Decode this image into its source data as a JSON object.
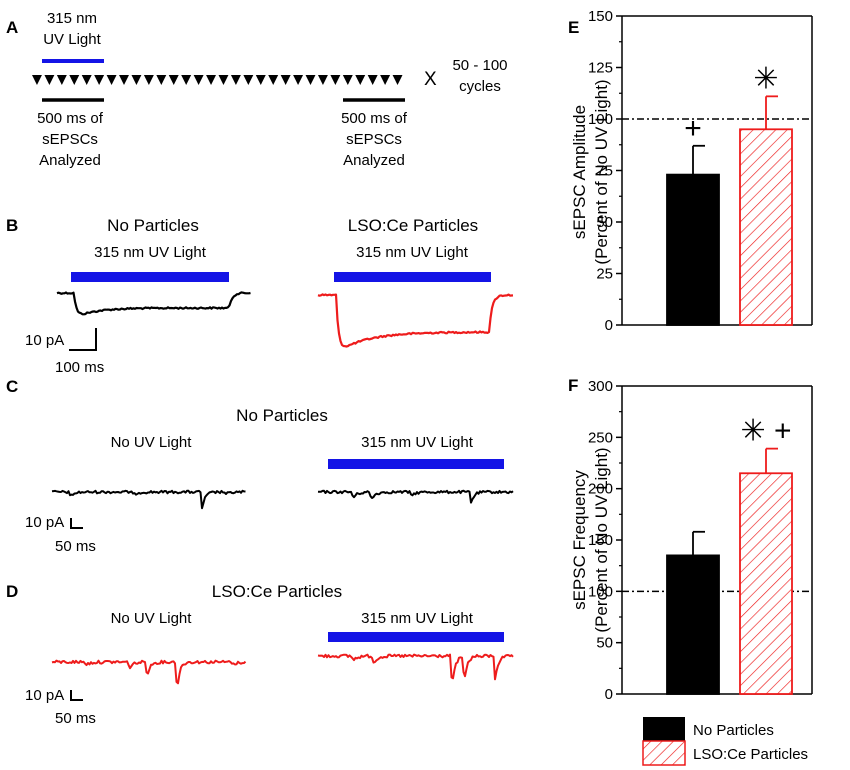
{
  "colors": {
    "black": "#000000",
    "red": "#ee1c1c",
    "blue": "#1414e6",
    "white": "#ffffff"
  },
  "panel_labels": [
    "A",
    "B",
    "C",
    "D",
    "E",
    "F"
  ],
  "panelA": {
    "uv_label_line1": "315 nm",
    "uv_label_line2": "UV Light",
    "cycles_x": "X",
    "cycles_line1": "50 - 100",
    "cycles_line2": "cycles",
    "analyzed_left": [
      "500 ms of",
      "sEPSCs",
      "Analyzed"
    ],
    "analyzed_right": [
      "500 ms of",
      "sEPSCs",
      "Analyzed"
    ],
    "pulse_count": 30
  },
  "panelB": {
    "title_left": "No Particles",
    "title_right": "LSO:Ce Particles",
    "uv_left": "315 nm UV Light",
    "uv_right": "315 nm UV Light",
    "scale_y": "10 pA",
    "scale_x": "100 ms"
  },
  "panelC": {
    "title": "No Particles",
    "left_label": "No UV Light",
    "right_label": "315 nm UV Light",
    "scale_y": "10 pA",
    "scale_x": "50 ms"
  },
  "panelD": {
    "title": "LSO:Ce Particles",
    "left_label": "No UV Light",
    "right_label": "315 nm UV Light",
    "scale_y": "10 pA",
    "scale_x": "50 ms"
  },
  "chart_data": [
    {
      "panel": "E",
      "type": "bar",
      "categories": [
        "No Particles",
        "LSO:Ce Particles"
      ],
      "values": [
        73,
        95
      ],
      "errors": [
        14,
        16
      ],
      "ylabel_line1": "sEPSC Amplitude",
      "ylabel_line2": "(Percent of No UV Light)",
      "ylim": [
        0,
        150
      ],
      "yticks": [
        "0",
        "25",
        "50",
        "75",
        "100",
        "125",
        "150"
      ],
      "reference_line": 100,
      "annotations": [
        "+",
        "✳"
      ]
    },
    {
      "panel": "F",
      "type": "bar",
      "categories": [
        "No Particles",
        "LSO:Ce Particles"
      ],
      "values": [
        135,
        215
      ],
      "errors": [
        23,
        24
      ],
      "ylabel_line1": "sEPSC Frequency",
      "ylabel_line2": "(Percent of No UV Light)",
      "ylim": [
        0,
        300
      ],
      "yticks": [
        "0",
        "50",
        "100",
        "150",
        "200",
        "250",
        "300"
      ],
      "reference_line": 100,
      "annotations": [
        "",
        "✳ +"
      ]
    }
  ],
  "legend": {
    "items": [
      "No Particles",
      "LSO:Ce Particles"
    ]
  }
}
